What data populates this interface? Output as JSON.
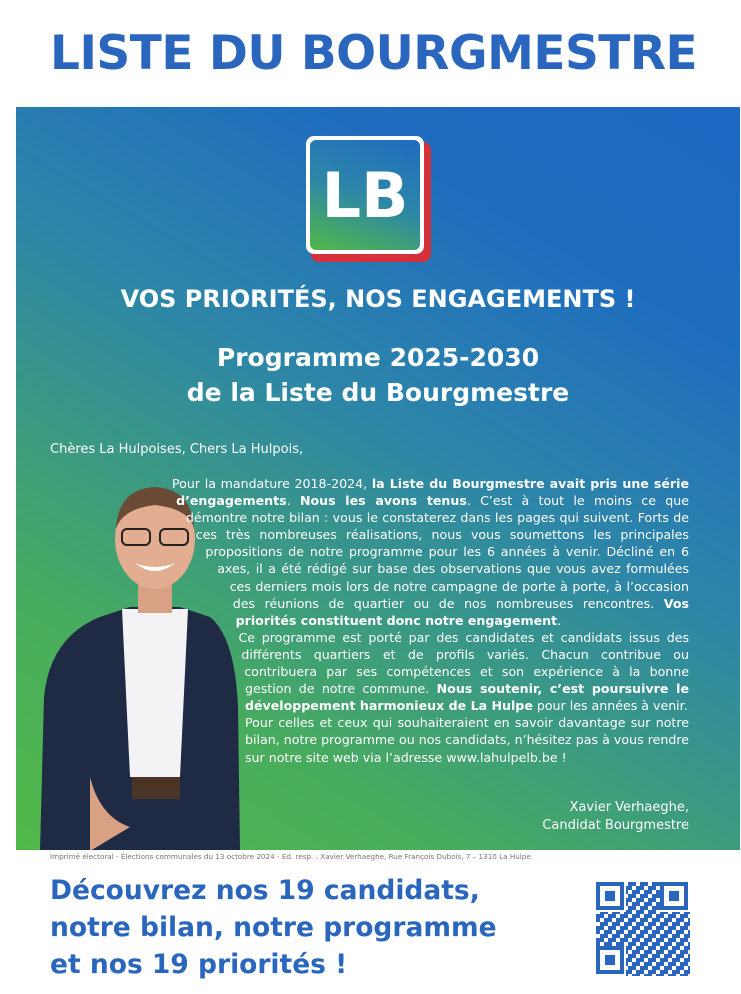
{
  "header": {
    "title": "LISTE DU BOURGMESTRE"
  },
  "logo": {
    "text": "LB"
  },
  "headline": "VOS PRIORITÉS, NOS ENGAGEMENTS !",
  "program": {
    "line1": "Programme 2025-2030",
    "line2": "de la Liste du Bourgmestre"
  },
  "letter": {
    "greeting": "Chères La Hulpoises, Chers La Hulpois,",
    "paragraphs": [
      [
        {
          "text": "Pour la mandature 2018-2024, ",
          "bold": false
        },
        {
          "text": "la Liste du Bourgmestre avait pris une série d’engagements",
          "bold": true
        },
        {
          "text": ". ",
          "bold": false
        },
        {
          "text": "Nous les avons tenus",
          "bold": true
        },
        {
          "text": ". C’est à tout le moins ce que démontre notre bilan : vous le constaterez dans les pages qui suivent. Forts de ces très nombreuses réalisations, nous vous soumettons les principales propositions de notre programme pour les 6 années à venir. Décliné en 6 axes, il a été rédigé sur base des observations que vous avez formulées ces derniers mois lors de notre campagne de porte à porte, à l’occasion des réunions de quartier ou de nos nombreuses rencontres. ",
          "bold": false
        },
        {
          "text": "Vos priorités constituent donc notre engagement",
          "bold": true
        },
        {
          "text": ".",
          "bold": false
        }
      ],
      [
        {
          "text": "Ce programme est porté par des candidates et candidats issus des différents quartiers et de profils variés. Chacun contribue ou contribuera par ses compétences et son expérience à la bonne gestion de notre commune. ",
          "bold": false
        },
        {
          "text": "Nous soutenir, c’est poursuivre le développement harmonieux de La Hulpe",
          "bold": true
        },
        {
          "text": " pour les années à venir.",
          "bold": false
        }
      ],
      [
        {
          "text": "Pour celles et ceux qui souhaiteraient en savoir davantage sur notre bilan, notre programme ou nos candidats, n’hésitez pas à vous rendre sur notre site web via l’adresse www.lahulpelb.be !",
          "bold": false
        }
      ]
    ],
    "signature": {
      "name": "Xavier Verhaeghe,",
      "role": "Candidat Bourgmestre"
    }
  },
  "imprint": "Imprimé électoral - Élections communales du 13 octobre 2024 - Ed. resp. : Xavier Verhaeghe, Rue François Dubois, 7 – 1310 La Hulpe.",
  "footer": {
    "lines": [
      "Découvrez nos 19 candidats,",
      "notre bilan, notre programme",
      "et nos 19 priorités !"
    ]
  }
}
